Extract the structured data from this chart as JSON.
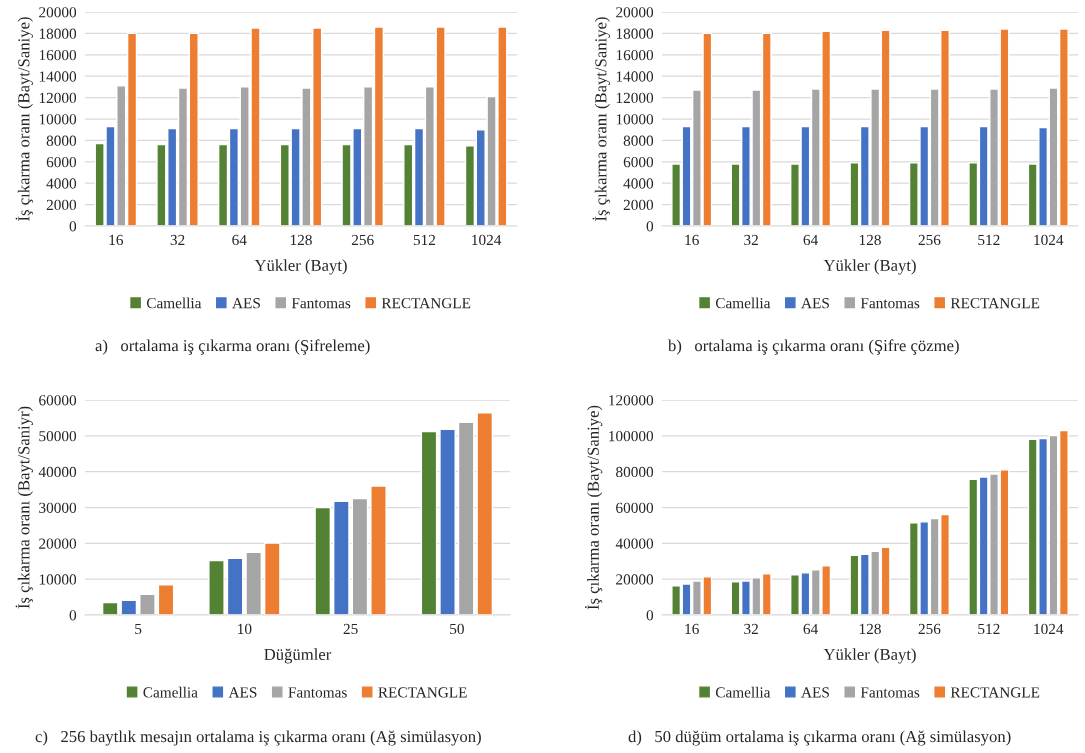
{
  "chart_data": [
    {
      "type": "bar",
      "categories": [
        "16",
        "32",
        "64",
        "128",
        "256",
        "512",
        "1024"
      ],
      "xlabel": "Yükler (Bayt)",
      "ylabel": "İş çıkarma oranı (Bayt/Saniye)",
      "ylim": [
        0,
        20000
      ],
      "yticks": [
        0,
        2000,
        4000,
        6000,
        8000,
        10000,
        12000,
        14000,
        16000,
        18000,
        20000
      ],
      "grid": "y",
      "legend": "bottom",
      "series": [
        {
          "name": "Camellia",
          "color": "#548235",
          "values": [
            7700,
            7600,
            7600,
            7600,
            7600,
            7600,
            7500
          ]
        },
        {
          "name": "AES",
          "color": "#4472c4",
          "values": [
            9300,
            9100,
            9100,
            9100,
            9100,
            9100,
            9000
          ]
        },
        {
          "name": "Fantomas",
          "color": "#a5a5a5",
          "values": [
            13100,
            12900,
            13000,
            12900,
            13000,
            13000,
            12100
          ]
        },
        {
          "name": "RECTANGLE",
          "color": "#ed7d31",
          "values": [
            18000,
            18000,
            18500,
            18500,
            18600,
            18600,
            18600
          ]
        }
      ],
      "annotations": [
        "a)   ortalama iş çıkarma oranı (Şifreleme)"
      ]
    },
    {
      "type": "bar",
      "categories": [
        "16",
        "32",
        "64",
        "128",
        "256",
        "512",
        "1024"
      ],
      "xlabel": "Yükler (Bayt)",
      "ylabel": "İş çıkarma oranı (Bayt/Saniye)",
      "ylim": [
        0,
        20000
      ],
      "yticks": [
        0,
        2000,
        4000,
        6000,
        8000,
        10000,
        12000,
        14000,
        16000,
        18000,
        20000
      ],
      "grid": "y",
      "legend": "bottom",
      "series": [
        {
          "name": "Camellia",
          "color": "#548235",
          "values": [
            5800,
            5800,
            5800,
            5900,
            5900,
            5900,
            5800
          ]
        },
        {
          "name": "AES",
          "color": "#4472c4",
          "values": [
            9300,
            9300,
            9300,
            9300,
            9300,
            9300,
            9200
          ]
        },
        {
          "name": "Fantomas",
          "color": "#a5a5a5",
          "values": [
            12700,
            12700,
            12800,
            12800,
            12800,
            12800,
            12900
          ]
        },
        {
          "name": "RECTANGLE",
          "color": "#ed7d31",
          "values": [
            18000,
            18000,
            18200,
            18300,
            18300,
            18400,
            18400
          ]
        }
      ],
      "annotations": [
        "b)   ortalama iş çıkarma oranı (Şifre çözme)"
      ]
    },
    {
      "type": "bar",
      "categories": [
        "5",
        "10",
        "25",
        "50"
      ],
      "xlabel": "Düğümler",
      "ylabel": "İş çıkarma oranı (Bayt/Saniyr)",
      "ylim": [
        0,
        60000
      ],
      "yticks": [
        0,
        10000,
        20000,
        30000,
        40000,
        50000,
        60000
      ],
      "grid": "y",
      "legend": "bottom",
      "series": [
        {
          "name": "Camellia",
          "color": "#548235",
          "values": [
            3500,
            15200,
            30000,
            51200
          ]
        },
        {
          "name": "AES",
          "color": "#4472c4",
          "values": [
            4100,
            15800,
            31700,
            51800
          ]
        },
        {
          "name": "Fantomas",
          "color": "#a5a5a5",
          "values": [
            5800,
            17500,
            32500,
            53800
          ]
        },
        {
          "name": "RECTANGLE",
          "color": "#ed7d31",
          "values": [
            8400,
            20100,
            36000,
            56400
          ]
        }
      ],
      "annotations": [
        "c)   256 baytlık mesajın ortalama iş çıkarma oranı (Ağ simülasyon)"
      ]
    },
    {
      "type": "bar",
      "categories": [
        "16",
        "32",
        "64",
        "128",
        "256",
        "512",
        "1024"
      ],
      "xlabel": "Yükler (Bayt)",
      "ylabel": "İş çıkarma oranı (Bayt/Saniye)",
      "ylim": [
        0,
        120000
      ],
      "yticks": [
        0,
        20000,
        40000,
        60000,
        80000,
        100000,
        120000
      ],
      "grid": "y",
      "legend": "bottom",
      "series": [
        {
          "name": "Camellia",
          "color": "#548235",
          "values": [
            16300,
            18500,
            22400,
            33300,
            51500,
            75800,
            98000
          ]
        },
        {
          "name": "AES",
          "color": "#4472c4",
          "values": [
            17300,
            19000,
            23500,
            33900,
            52000,
            77000,
            98500
          ]
        },
        {
          "name": "Fantomas",
          "color": "#a5a5a5",
          "values": [
            19000,
            20700,
            25200,
            35500,
            53800,
            78700,
            100200
          ]
        },
        {
          "name": "RECTANGLE",
          "color": "#ed7d31",
          "values": [
            21300,
            23000,
            27500,
            37800,
            56000,
            81000,
            103000
          ]
        }
      ],
      "annotations": [
        "d)   50 düğüm ortalama iş çıkarma oranı (Ağ simülasyon)"
      ]
    }
  ]
}
